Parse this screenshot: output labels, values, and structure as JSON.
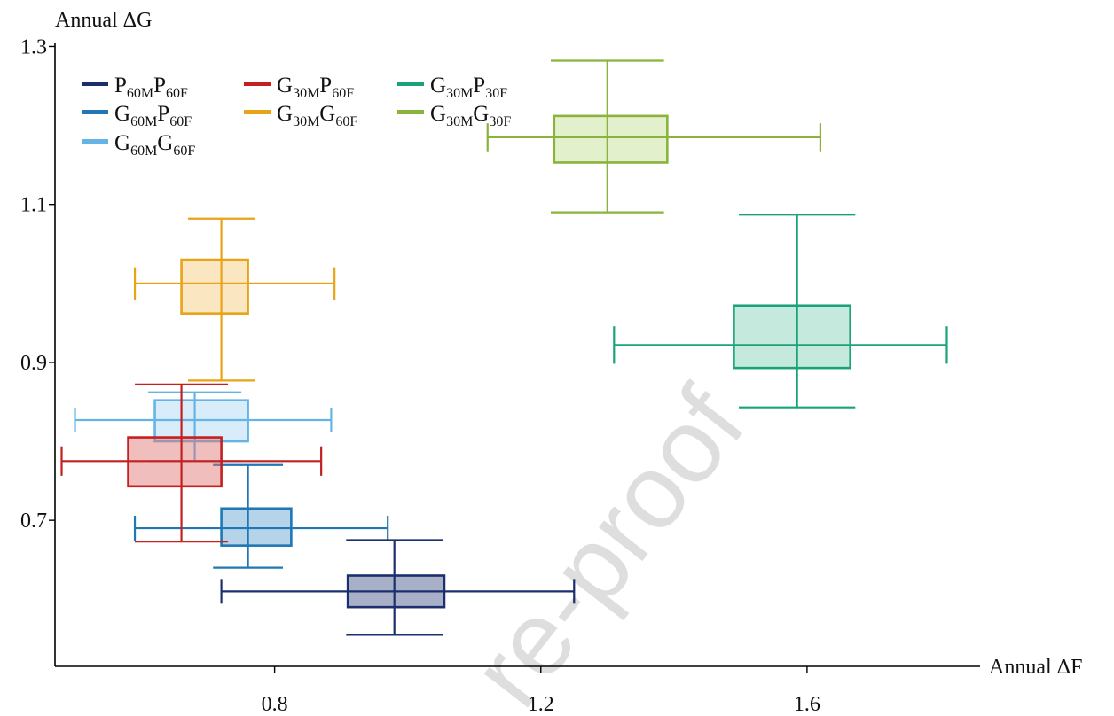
{
  "chart_data": {
    "type": "scatter",
    "title": "",
    "xlabel": "Annual ΔF",
    "ylabel": "Annual ΔG",
    "xlim": [
      0.47,
      1.86
    ],
    "ylim": [
      0.515,
      1.305
    ],
    "xticks": [
      "0.8",
      "1.2",
      "1.6"
    ],
    "yticks": [
      "0.7",
      "0.9",
      "1.1",
      "1.3"
    ],
    "grid": false,
    "legend_position": "top-left",
    "watermark": "re-proof",
    "series": [
      {
        "name": "P60MP60F",
        "color": "#1b2f6e",
        "fill": "#3d4f86",
        "x": {
          "whisker_low": 0.72,
          "box_low": 0.91,
          "center": 0.98,
          "box_high": 1.055,
          "whisker_high": 1.25
        },
        "y": {
          "whisker_low": 0.555,
          "box_low": 0.59,
          "center": 0.61,
          "box_high": 0.63,
          "whisker_high": 0.675
        }
      },
      {
        "name": "G60MP60F",
        "color": "#1f77b4",
        "fill": "#5b9fd0",
        "x": {
          "whisker_low": 0.59,
          "box_low": 0.72,
          "center": 0.76,
          "box_high": 0.825,
          "whisker_high": 0.97
        },
        "y": {
          "whisker_low": 0.64,
          "box_low": 0.668,
          "center": 0.69,
          "box_high": 0.715,
          "whisker_high": 0.77
        }
      },
      {
        "name": "G60MG60F",
        "color": "#64b5e6",
        "fill": "#a9d6f2",
        "x": {
          "whisker_low": 0.5,
          "box_low": 0.62,
          "center": 0.68,
          "box_high": 0.76,
          "whisker_high": 0.885
        },
        "y": {
          "whisker_low": 0.775,
          "box_low": 0.8,
          "center": 0.827,
          "box_high": 0.852,
          "whisker_high": 0.862
        }
      },
      {
        "name": "G30MP60F",
        "color": "#c42020",
        "fill": "#e06f6f",
        "x": {
          "whisker_low": 0.48,
          "box_low": 0.58,
          "center": 0.66,
          "box_high": 0.72,
          "whisker_high": 0.87
        },
        "y": {
          "whisker_low": 0.673,
          "box_low": 0.743,
          "center": 0.775,
          "box_high": 0.805,
          "whisker_high": 0.872
        }
      },
      {
        "name": "G30MG60F",
        "color": "#e8a317",
        "fill": "#f4c977",
        "x": {
          "whisker_low": 0.59,
          "box_low": 0.66,
          "center": 0.72,
          "box_high": 0.76,
          "whisker_high": 0.89
        },
        "y": {
          "whisker_low": 0.877,
          "box_low": 0.962,
          "center": 1.0,
          "box_high": 1.03,
          "whisker_high": 1.082
        }
      },
      {
        "name": "G30MP30F",
        "color": "#1aa37a",
        "fill": "#7fcfb2",
        "x": {
          "whisker_low": 1.31,
          "box_low": 1.49,
          "center": 1.585,
          "box_high": 1.665,
          "whisker_high": 1.81
        },
        "y": {
          "whisker_low": 0.843,
          "box_low": 0.893,
          "center": 0.922,
          "box_high": 0.972,
          "whisker_high": 1.087
        }
      },
      {
        "name": "G30MG30F",
        "color": "#8ab33c",
        "fill": "#c2dd8e",
        "x": {
          "whisker_low": 1.12,
          "box_low": 1.22,
          "center": 1.3,
          "box_high": 1.39,
          "whisker_high": 1.62
        },
        "y": {
          "whisker_low": 1.09,
          "box_low": 1.153,
          "center": 1.185,
          "box_high": 1.212,
          "whisker_high": 1.282
        }
      }
    ]
  },
  "legend": [
    {
      "main1": "P",
      "sub1": "60M",
      "main2": "P",
      "sub2": "60F"
    },
    {
      "main1": "G",
      "sub1": "60M",
      "main2": "P",
      "sub2": "60F"
    },
    {
      "main1": "G",
      "sub1": "60M",
      "main2": "G",
      "sub2": "60F"
    },
    {
      "main1": "G",
      "sub1": "30M",
      "main2": "P",
      "sub2": "60F"
    },
    {
      "main1": "G",
      "sub1": "30M",
      "main2": "G",
      "sub2": "60F"
    },
    {
      "main1": "G",
      "sub1": "30M",
      "main2": "P",
      "sub2": "30F"
    },
    {
      "main1": "G",
      "sub1": "30M",
      "main2": "G",
      "sub2": "30F"
    }
  ]
}
